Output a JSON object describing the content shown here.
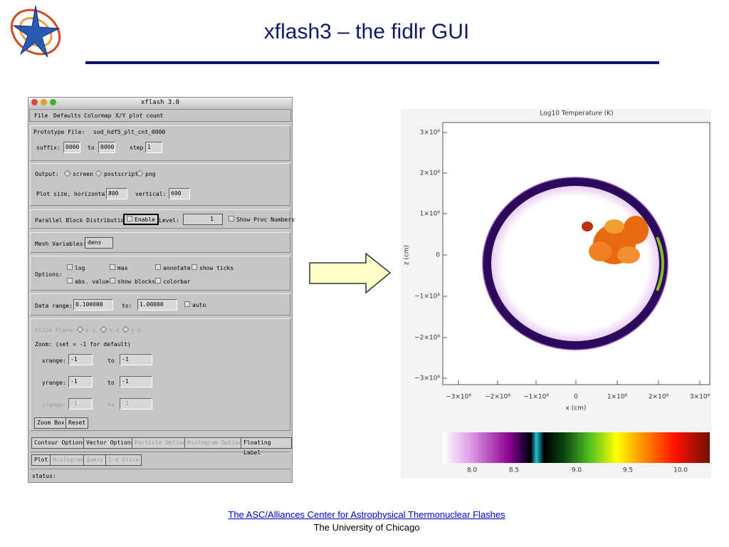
{
  "slide": {
    "title": "xflash3 – the fidlr GUI",
    "footer_link": "The ASC/Alliances Center for Astrophysical Thermonuclear Flashes",
    "footer_text": "The University of Chicago"
  },
  "window": {
    "title": "xflash 3.0",
    "menu": [
      "File",
      "Defaults",
      "Colormap",
      "X/Y plot count"
    ],
    "prototype_label": "Prototype File:",
    "prototype_value": "sod_hdf5_plt_cnt_0000",
    "suffix_label": "suffix:",
    "suffix_from": "0000",
    "suffix_to_label": "to",
    "suffix_to": "0000",
    "step_label": "step",
    "step_value": "1",
    "output_label": "Output:",
    "output_options": [
      "screen",
      "postscript",
      "png"
    ],
    "plot_size_label": "Plot size, horizontal:",
    "plot_horizontal": "800",
    "vertical_label": "vertical:",
    "plot_vertical": "600",
    "block_label": "Parallel Block Distribution:",
    "enable": "Enable",
    "level_label": "Level:",
    "level_value": "1",
    "show_proc": "Show Proc Numbers",
    "mesh_label": "Mesh Variables:",
    "mesh_value": "dens",
    "options_label": "Options:",
    "options": [
      "log",
      "max",
      "annotate",
      "show ticks",
      "abs. value",
      "show blocks",
      "colorbar"
    ],
    "data_range_label": "Data range:",
    "data_min": "0.100000",
    "data_to_label": "to:",
    "data_max": "1.00000",
    "auto": "auto",
    "slice_label": "Slice Plane:",
    "slice_options": [
      "x-y",
      "x-z",
      "y-z"
    ],
    "zoom_label": "Zoom: (set = -1 for default)",
    "ranges": [
      {
        "label": "xrange:",
        "from": "-1",
        "to_label": "to",
        "to": "-1"
      },
      {
        "label": "yrange:",
        "from": "-1",
        "to_label": "to",
        "to": "-1"
      },
      {
        "label": "zrange:",
        "from": "-1",
        "to_label": "to",
        "to": "-1"
      }
    ],
    "zoom_buttons": [
      "Zoom Box",
      "Reset"
    ],
    "option_buttons": [
      "Contour Options",
      "Vector Options",
      "Particle Options",
      "Histogram Options",
      "Floating Label"
    ],
    "action_buttons": [
      "Plot",
      "Histogram",
      "Query",
      "1-d Slice"
    ],
    "status": "status:"
  },
  "plot": {
    "title": "Log10 Temperature (K)",
    "xlabel": "x (cm)",
    "ylabel": "z (cm)",
    "xticks": [
      "−3×10⁸",
      "−2×10⁸",
      "−1×10⁸",
      "0",
      "1×10⁸",
      "2×10⁸",
      "3×10⁸"
    ],
    "yticks": [
      "3×10⁸",
      "2×10⁸",
      "1×10⁸",
      "0",
      "−1×10⁸",
      "−2×10⁸",
      "−3×10⁸"
    ],
    "colorbar_ticks": [
      "8.0",
      "8.5",
      "9.0",
      "9.5",
      "10.0"
    ]
  }
}
